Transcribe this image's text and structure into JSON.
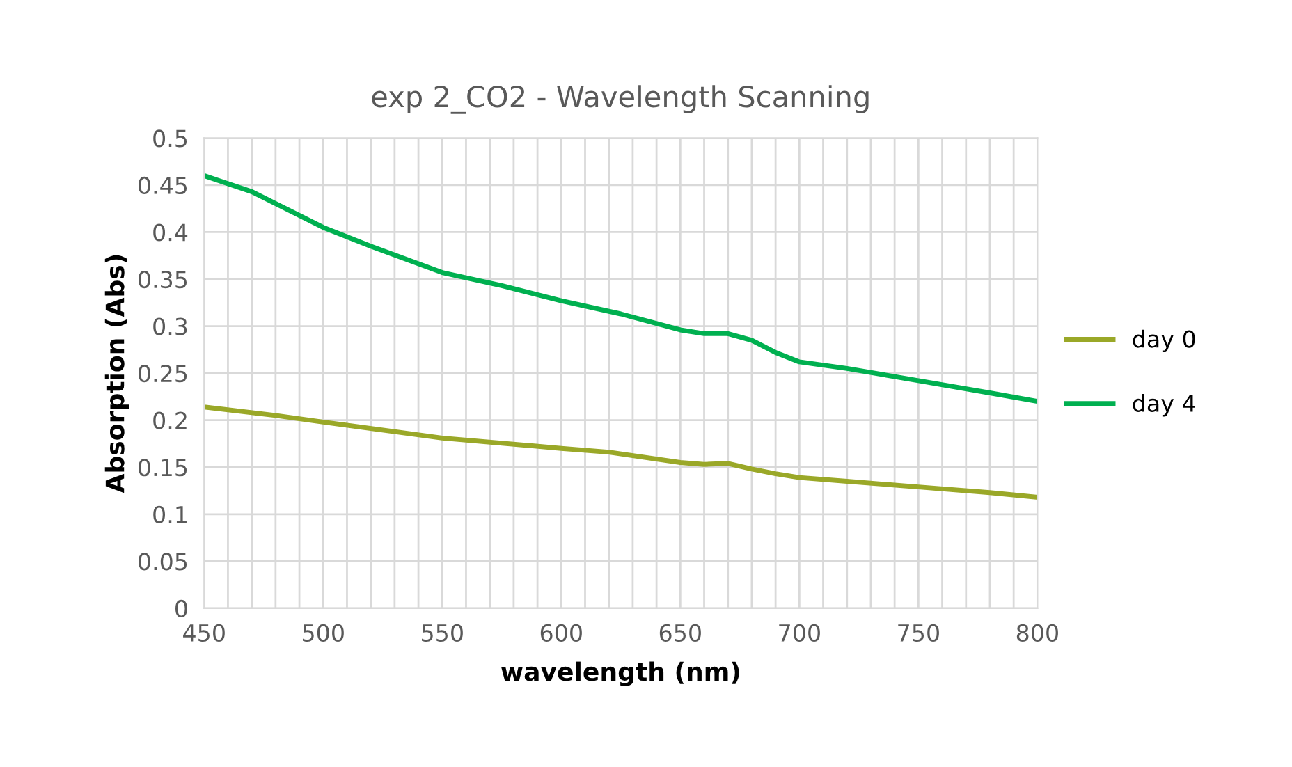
{
  "chart_data": {
    "type": "line",
    "title": "exp 2_CO2 - Wavelength Scanning",
    "xlabel": "wavelength (nm)",
    "ylabel": "Absorption (Abs)",
    "xlim": [
      450,
      800
    ],
    "ylim": [
      0,
      0.5
    ],
    "xticks": [
      450,
      {
        "value": 460,
        "label": null
      },
      {
        "value": 470,
        "label": null
      },
      {
        "value": 480,
        "label": null
      },
      {
        "value": 490,
        "label": null
      },
      500,
      {
        "value": 510,
        "label": null
      },
      {
        "value": 520,
        "label": null
      },
      {
        "value": 530,
        "label": null
      },
      {
        "value": 540,
        "label": null
      },
      550,
      {
        "value": 560,
        "label": null
      },
      {
        "value": 570,
        "label": null
      },
      {
        "value": 580,
        "label": null
      },
      {
        "value": 590,
        "label": null
      },
      600,
      {
        "value": 610,
        "label": null
      },
      {
        "value": 620,
        "label": null
      },
      {
        "value": 630,
        "label": null
      },
      {
        "value": 640,
        "label": null
      },
      650,
      {
        "value": 660,
        "label": null
      },
      {
        "value": 670,
        "label": null
      },
      {
        "value": 680,
        "label": null
      },
      {
        "value": 690,
        "label": null
      },
      700,
      {
        "value": 710,
        "label": null
      },
      {
        "value": 720,
        "label": null
      },
      {
        "value": 730,
        "label": null
      },
      {
        "value": 740,
        "label": null
      },
      750,
      {
        "value": 760,
        "label": null
      },
      {
        "value": 770,
        "label": null
      },
      {
        "value": 780,
        "label": null
      },
      {
        "value": 790,
        "label": null
      },
      800
    ],
    "yticks": [
      0,
      0.05,
      0.1,
      0.15,
      0.2,
      0.25,
      0.3,
      0.35,
      0.4,
      0.45,
      0.5
    ],
    "grid": true,
    "legend": "right",
    "marker": "none",
    "line_style": "solid",
    "series": [
      {
        "name": "day 0",
        "color": "#9aa828",
        "x": [
          450,
          480,
          500,
          550,
          600,
          620,
          650,
          660,
          670,
          680,
          690,
          700,
          720,
          750,
          780,
          800
        ],
        "values": [
          0.214,
          0.205,
          0.198,
          0.181,
          0.17,
          0.166,
          0.155,
          0.153,
          0.154,
          0.148,
          0.143,
          0.139,
          0.135,
          0.129,
          0.123,
          0.118
        ]
      },
      {
        "name": "day 4",
        "color": "#00b050",
        "x": [
          450,
          470,
          500,
          520,
          550,
          575,
          600,
          625,
          650,
          660,
          670,
          680,
          690,
          700,
          720,
          750,
          780,
          800
        ],
        "values": [
          0.46,
          0.443,
          0.405,
          0.385,
          0.357,
          0.343,
          0.327,
          0.313,
          0.296,
          0.292,
          0.292,
          0.285,
          0.272,
          0.262,
          0.255,
          0.242,
          0.229,
          0.22
        ]
      }
    ]
  }
}
